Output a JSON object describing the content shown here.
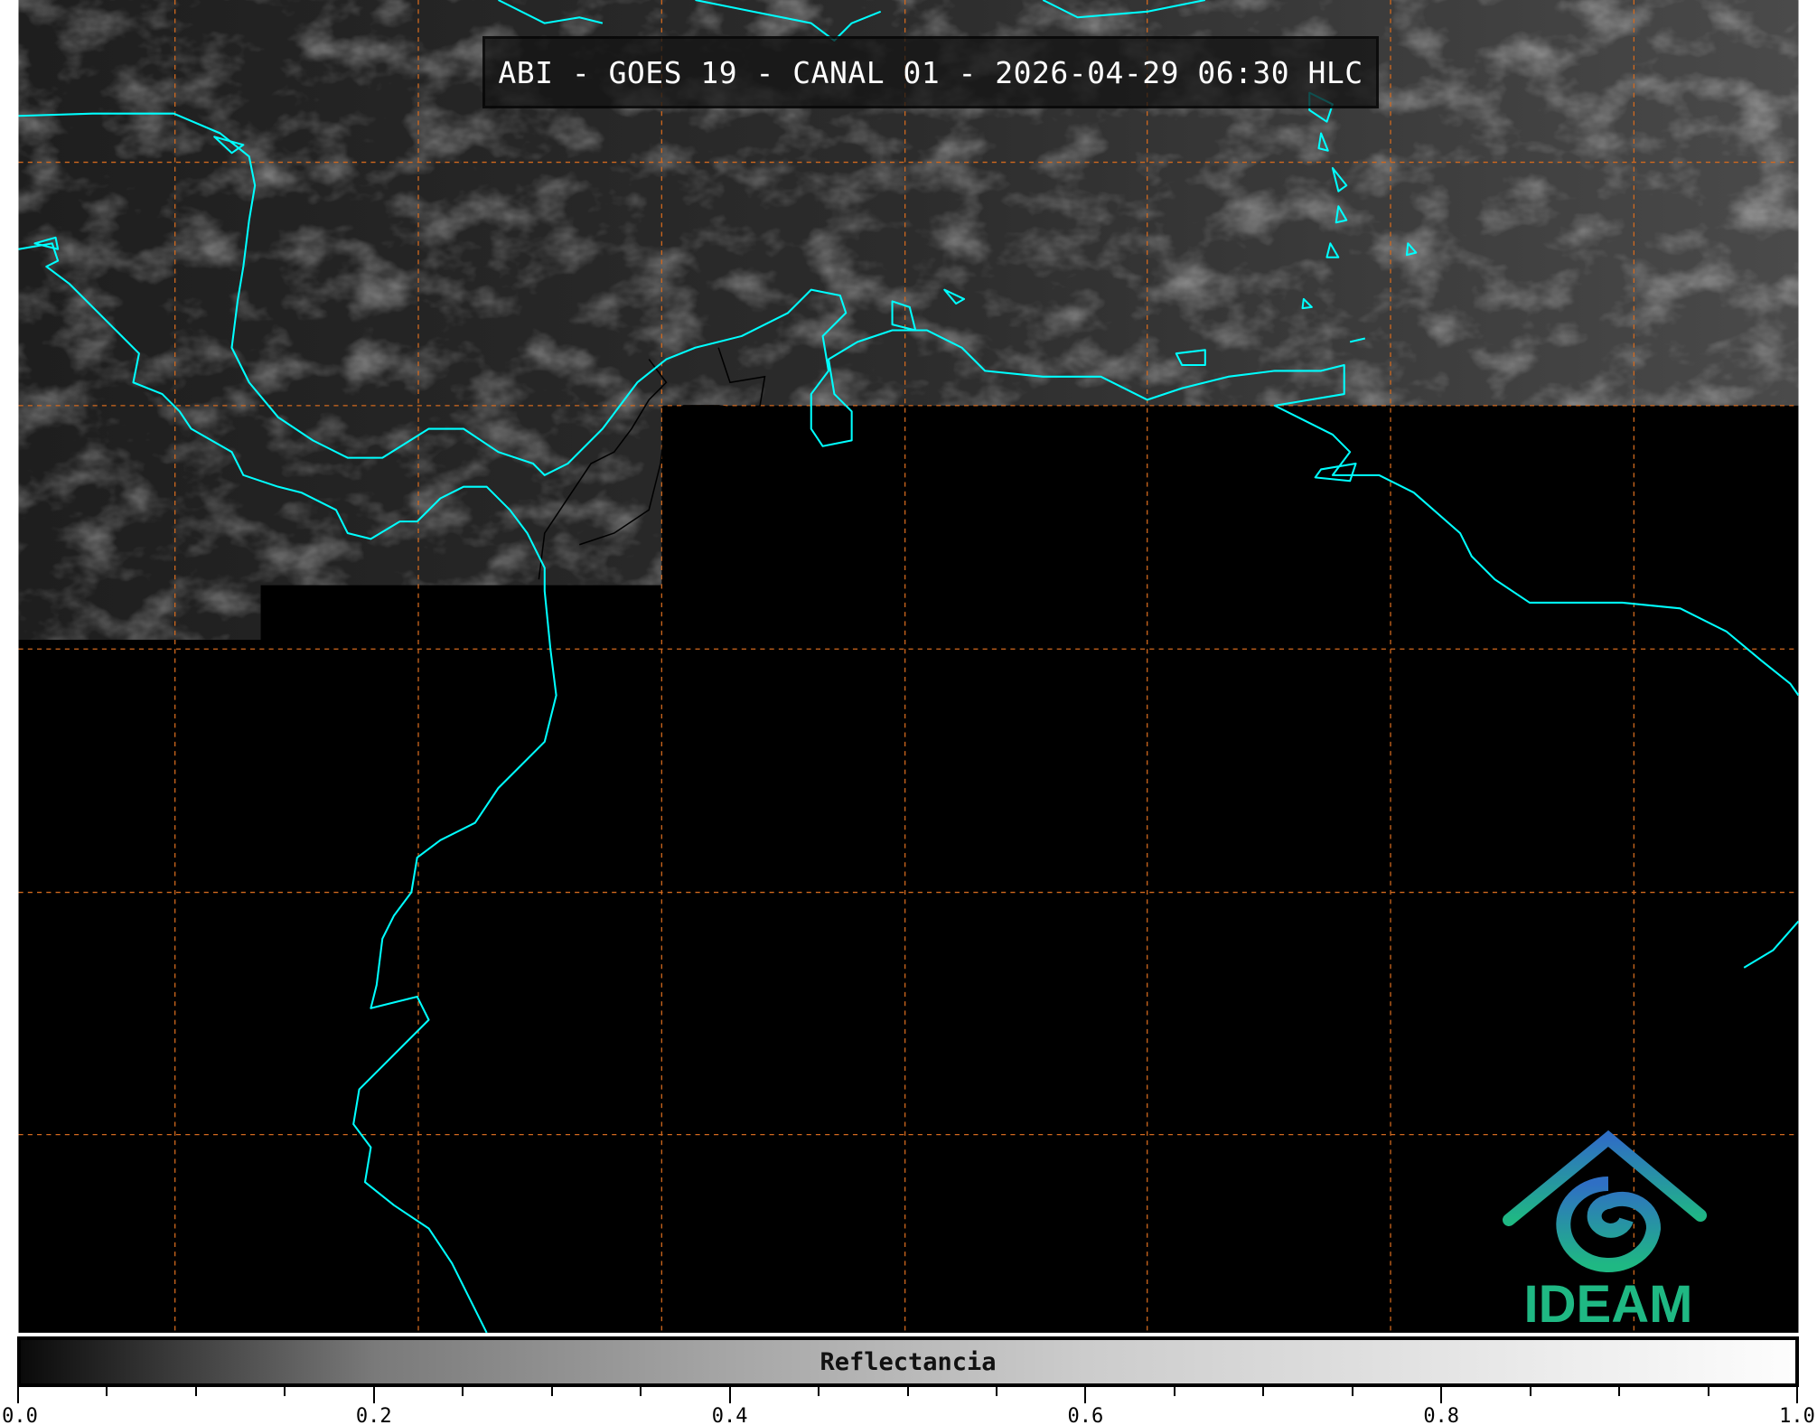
{
  "title": "ABI - GOES 19 - CANAL 01 - 2026-04-29 06:30 HLC",
  "colorbar": {
    "label": "Reflectancia",
    "min": 0.0,
    "max": 1.0,
    "major_ticks": [
      "0.0",
      "0.2",
      "0.4",
      "0.6",
      "0.8",
      "1.0"
    ],
    "minor_step": 0.05,
    "colormap": "grayscale black-to-white"
  },
  "logo": {
    "text": "IDEAM",
    "color": "#1fb883",
    "roof_color": "#2f7fc4"
  },
  "colors": {
    "coastline": "#00ffff",
    "grid": "#d2691e",
    "borders": "#000000",
    "no_data": "#000000"
  },
  "grid": {
    "style": "dashed",
    "visible": true
  }
}
